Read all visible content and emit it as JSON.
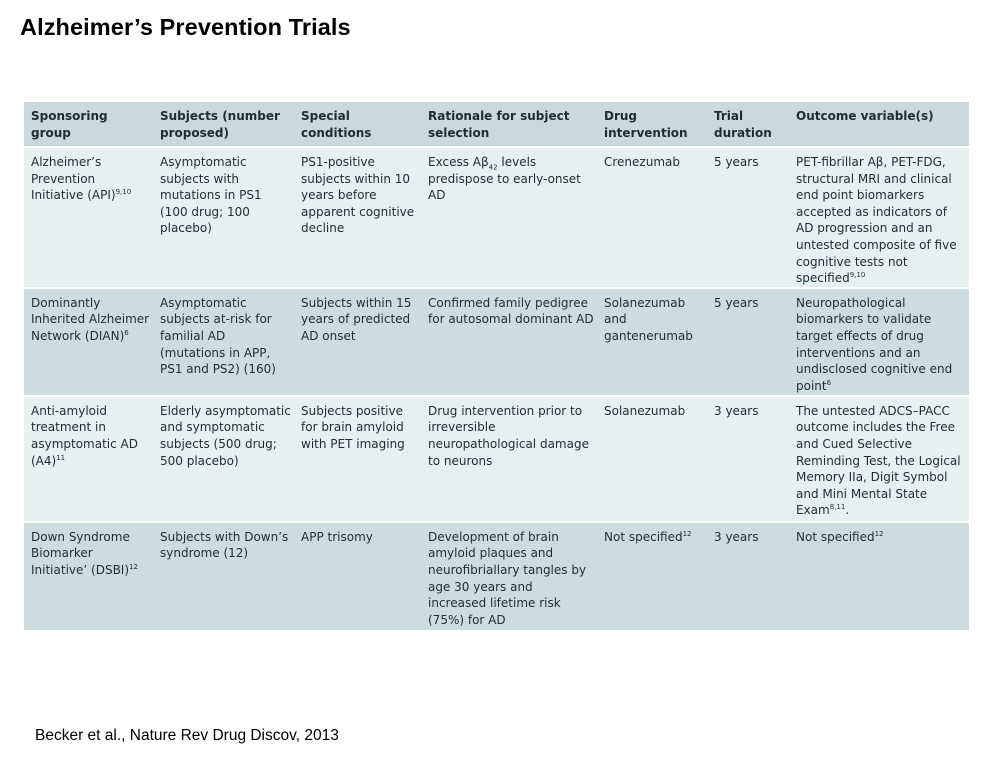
{
  "slide": {
    "title": "Alzheimer’s Prevention Trials",
    "citation": "Becker et al., Nature Rev Drug Discov, 2013"
  },
  "table": {
    "headers": [
      "Sponsoring group",
      "Subjects (number proposed)",
      "Special conditions",
      "Rationale for subject selection",
      "Drug intervention",
      "Trial duration",
      "Outcome variable(s)"
    ],
    "rows": [
      {
        "group": "Alzheimer’s Prevention Initiative (API)",
        "group_ref": "9,10",
        "subjects": "Asymptomatic subjects with mutations in PS1 (100 drug; 100 placebo)",
        "conditions": "PS1-positive subjects within 10 years before apparent cognitive decline",
        "rationale_pre": "Excess Aβ",
        "rationale_sub": "42",
        "rationale_post": " levels predispose to early-onset AD",
        "drug": "Crenezumab",
        "drug_ref": "",
        "duration": "5 years",
        "outcome": "PET-fibrillar Aβ, PET-FDG, structural MRI and clinical end point biomarkers accepted as indicators of AD progression and an untested composite of five cognitive tests not specified",
        "outcome_ref": "9,10",
        "outcome_end": ""
      },
      {
        "group": "Dominantly Inherited Alzheimer Network (DIAN)",
        "group_ref": "6",
        "subjects": "Asymptomatic subjects at-risk for familial AD (mutations in APP, PS1 and PS2) (160)",
        "conditions": "Subjects within 15 years of predicted AD onset",
        "rationale_pre": "Confirmed family pedigree for autosomal dominant AD",
        "rationale_sub": "",
        "rationale_post": "",
        "drug": "Solanezumab and gantenerumab",
        "drug_ref": "",
        "duration": "5 years",
        "outcome": "Neuropathological biomarkers to validate target effects of drug interventions and an undisclosed cognitive end point",
        "outcome_ref": "6",
        "outcome_end": ""
      },
      {
        "group": "Anti-amyloid treatment in asymptomatic AD (A4)",
        "group_ref": "11",
        "subjects": "Elderly asymptomatic and symptomatic subjects (500 drug; 500 placebo)",
        "conditions": "Subjects positive for brain amyloid with PET imaging",
        "rationale_pre": "Drug intervention prior to irreversible neuropathological damage to neurons",
        "rationale_sub": "",
        "rationale_post": "",
        "drug": "Solanezumab",
        "drug_ref": "",
        "duration": "3 years",
        "outcome": "The untested ADCS–PACC outcome includes the Free and Cued Selective Reminding Test, the Logical Memory IIa, Digit Symbol and Mini Mental State Exam",
        "outcome_ref": "8,11",
        "outcome_end": "."
      },
      {
        "group": "Down Syndrome Biomarker Initiative’ (DSBI)",
        "group_ref": "12",
        "subjects": "Subjects with Down’s syndrome (12)",
        "conditions": "APP trisomy",
        "rationale_pre": "Development of brain amyloid plaques and neurofibriallary tangles by age 30 years and increased lifetime risk (75%) for AD",
        "rationale_sub": "",
        "rationale_post": "",
        "drug": "Not specified",
        "drug_ref": "12",
        "duration": "3 years",
        "outcome": "Not specified",
        "outcome_ref": "12",
        "outcome_end": ""
      }
    ]
  }
}
